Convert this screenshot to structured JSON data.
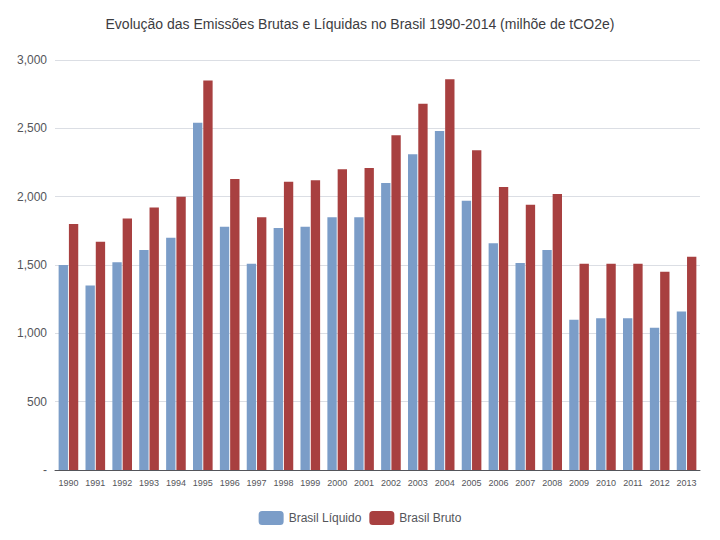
{
  "chart_data": {
    "type": "bar",
    "title": "Evolução das Emissões Brutas e Líquidas no Brasil 1990-2014 (milhõe de tCO2e)",
    "categories": [
      "1990",
      "1991",
      "1992",
      "1993",
      "1994",
      "1995",
      "1996",
      "1997",
      "1998",
      "1999",
      "2000",
      "2001",
      "2002",
      "2003",
      "2004",
      "2005",
      "2006",
      "2007",
      "2008",
      "2009",
      "2010",
      "2011",
      "2012",
      "2013"
    ],
    "series": [
      {
        "name": "Brasil Líquido",
        "color": "#7b9dc8",
        "values": [
          1500,
          1350,
          1520,
          1610,
          1700,
          2540,
          1780,
          1510,
          1770,
          1780,
          1850,
          1850,
          2100,
          2310,
          2480,
          1970,
          1660,
          1515,
          1610,
          1100,
          1110,
          1110,
          1040,
          1160
        ]
      },
      {
        "name": "Brasil Bruto",
        "color": "#a84040",
        "values": [
          1800,
          1670,
          1840,
          1920,
          2000,
          2850,
          2130,
          1850,
          2110,
          2120,
          2200,
          2210,
          2450,
          2680,
          2860,
          2340,
          2070,
          1940,
          2020,
          1510,
          1510,
          1510,
          1450,
          1560
        ]
      }
    ],
    "ylim": [
      0,
      3000
    ],
    "yticks": [
      {
        "value": 0,
        "label": "-"
      },
      500,
      {
        "value": 1000,
        "label": "1,000"
      },
      {
        "value": 1500,
        "label": "1,500"
      },
      {
        "value": 2000,
        "label": "2,000"
      },
      {
        "value": 2500,
        "label": "2,500"
      },
      {
        "value": 3000,
        "label": "3,000"
      }
    ],
    "grid": true,
    "legend": "bottom"
  }
}
